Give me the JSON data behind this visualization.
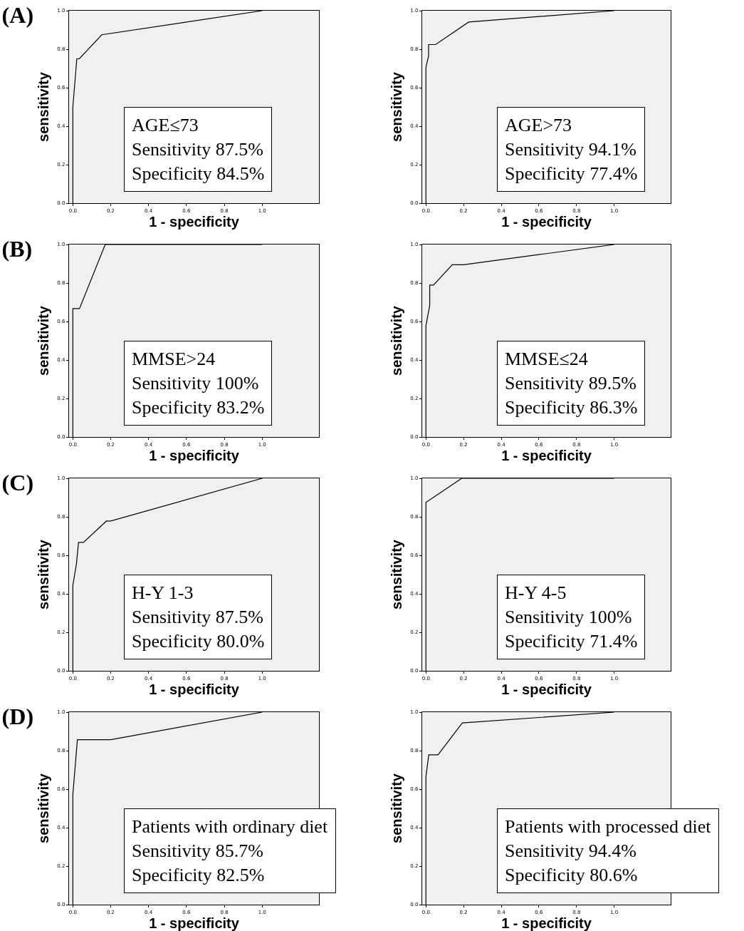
{
  "chart_data": [
    {
      "type": "line",
      "title": "(A)",
      "xlabel": "1 - specificity",
      "ylabel": "sensitivity",
      "x": [
        0,
        0,
        0.021,
        0.034,
        0.153,
        1
      ],
      "values": [
        0,
        0.5,
        0.75,
        0.75,
        0.875,
        1
      ],
      "color": "#000000",
      "xlim": [
        -0.02,
        1.3
      ],
      "ylim": [
        0,
        1
      ],
      "xticks": [
        {
          "value": 0,
          "label": "0.0"
        },
        {
          "value": 0.2,
          "label": "0.2"
        },
        {
          "value": 0.4,
          "label": "0.4"
        },
        {
          "value": 0.6,
          "label": "0.6"
        },
        {
          "value": 0.8,
          "label": "0.8"
        },
        {
          "value": 1,
          "label": "1.0"
        }
      ],
      "yticks": [
        {
          "value": 0,
          "label": "0.0"
        },
        {
          "value": 0.2,
          "label": "0.2"
        },
        {
          "value": 0.4,
          "label": "0.4"
        },
        {
          "value": 0.6,
          "label": "0.6"
        },
        {
          "value": 0.8,
          "label": "0.8"
        },
        {
          "value": 1,
          "label": "1.0"
        }
      ],
      "annotations": [
        "AGE≤73",
        "Sensitivity 87.5%",
        "Specificity 84.5%"
      ],
      "grid": false,
      "marker": "none",
      "line_style": "solid"
    },
    {
      "type": "line",
      "xlabel": "1 - specificity",
      "ylabel": "sensitivity",
      "x": [
        0,
        0,
        0.014,
        0.014,
        0.051,
        0.227,
        1
      ],
      "values": [
        0,
        0.706,
        0.765,
        0.824,
        0.824,
        0.941,
        1
      ],
      "color": "#000000",
      "xlim": [
        -0.02,
        1.3
      ],
      "ylim": [
        0,
        1
      ],
      "xticks": [
        {
          "value": 0,
          "label": "0.0"
        },
        {
          "value": 0.2,
          "label": "0.2"
        },
        {
          "value": 0.4,
          "label": "0.4"
        },
        {
          "value": 0.6,
          "label": "0.6"
        },
        {
          "value": 0.8,
          "label": "0.8"
        },
        {
          "value": 1,
          "label": "1.0"
        }
      ],
      "yticks": [
        {
          "value": 0,
          "label": "0.0"
        },
        {
          "value": 0.2,
          "label": "0.2"
        },
        {
          "value": 0.4,
          "label": "0.4"
        },
        {
          "value": 0.6,
          "label": "0.6"
        },
        {
          "value": 0.8,
          "label": "0.8"
        },
        {
          "value": 1,
          "label": "1.0"
        }
      ],
      "annotations": [
        "AGE>73",
        "Sensitivity 94.1%",
        "Specificity 77.4%"
      ],
      "grid": false,
      "marker": "none",
      "line_style": "solid"
    },
    {
      "type": "line",
      "title": "(B)",
      "xlabel": "1 - specificity",
      "ylabel": "sensitivity",
      "x": [
        0,
        0,
        0.035,
        0.171,
        1
      ],
      "values": [
        0,
        0.667,
        0.667,
        1,
        1
      ],
      "color": "#000000",
      "xlim": [
        -0.02,
        1.3
      ],
      "ylim": [
        0,
        1
      ],
      "xticks": [
        {
          "value": 0,
          "label": "0.0"
        },
        {
          "value": 0.2,
          "label": "0.2"
        },
        {
          "value": 0.4,
          "label": "0.4"
        },
        {
          "value": 0.6,
          "label": "0.6"
        },
        {
          "value": 0.8,
          "label": "0.8"
        },
        {
          "value": 1,
          "label": "1.0"
        }
      ],
      "yticks": [
        {
          "value": 0,
          "label": "0.0"
        },
        {
          "value": 0.2,
          "label": "0.2"
        },
        {
          "value": 0.4,
          "label": "0.4"
        },
        {
          "value": 0.6,
          "label": "0.6"
        },
        {
          "value": 0.8,
          "label": "0.8"
        },
        {
          "value": 1,
          "label": "1.0"
        }
      ],
      "annotations": [
        "MMSE>24",
        "Sensitivity 100%",
        "Specificity 83.2%"
      ],
      "grid": false,
      "marker": "none",
      "line_style": "solid"
    },
    {
      "type": "line",
      "xlabel": "1 - specificity",
      "ylabel": "sensitivity",
      "x": [
        0,
        0,
        0.02,
        0.02,
        0.04,
        0.14,
        0.2,
        1
      ],
      "values": [
        0,
        0.579,
        0.684,
        0.789,
        0.789,
        0.895,
        0.895,
        1
      ],
      "color": "#000000",
      "xlim": [
        -0.02,
        1.3
      ],
      "ylim": [
        0,
        1
      ],
      "xticks": [
        {
          "value": 0,
          "label": "0.0"
        },
        {
          "value": 0.2,
          "label": "0.2"
        },
        {
          "value": 0.4,
          "label": "0.4"
        },
        {
          "value": 0.6,
          "label": "0.6"
        },
        {
          "value": 0.8,
          "label": "0.8"
        },
        {
          "value": 1,
          "label": "1.0"
        }
      ],
      "yticks": [
        {
          "value": 0,
          "label": "0.0"
        },
        {
          "value": 0.2,
          "label": "0.2"
        },
        {
          "value": 0.4,
          "label": "0.4"
        },
        {
          "value": 0.6,
          "label": "0.6"
        },
        {
          "value": 0.8,
          "label": "0.8"
        },
        {
          "value": 1,
          "label": "1.0"
        }
      ],
      "annotations": [
        "MMSE≤24",
        "Sensitivity 89.5%",
        "Specificity 86.3%"
      ],
      "grid": false,
      "marker": "none",
      "line_style": "solid"
    },
    {
      "type": "line",
      "title": "(C)",
      "xlabel": "1 - specificity",
      "ylabel": "sensitivity",
      "x": [
        0,
        0,
        0.019,
        0.03,
        0.056,
        0.177,
        0.2,
        1
      ],
      "values": [
        0,
        0.444,
        0.556,
        0.667,
        0.667,
        0.778,
        0.778,
        1
      ],
      "color": "#000000",
      "xlim": [
        -0.02,
        1.3
      ],
      "ylim": [
        0,
        1
      ],
      "xticks": [
        {
          "value": 0,
          "label": "0.0"
        },
        {
          "value": 0.2,
          "label": "0.2"
        },
        {
          "value": 0.4,
          "label": "0.4"
        },
        {
          "value": 0.6,
          "label": "0.6"
        },
        {
          "value": 0.8,
          "label": "0.8"
        },
        {
          "value": 1,
          "label": "1.0"
        }
      ],
      "yticks": [
        {
          "value": 0,
          "label": "0.0"
        },
        {
          "value": 0.2,
          "label": "0.2"
        },
        {
          "value": 0.4,
          "label": "0.4"
        },
        {
          "value": 0.6,
          "label": "0.6"
        },
        {
          "value": 0.8,
          "label": "0.8"
        },
        {
          "value": 1,
          "label": "1.0"
        }
      ],
      "annotations": [
        "H-Y 1-3",
        "Sensitivity 87.5%",
        "Specificity 80.0%"
      ],
      "grid": false,
      "marker": "none",
      "line_style": "solid"
    },
    {
      "type": "line",
      "xlabel": "1 - specificity",
      "ylabel": "sensitivity",
      "x": [
        0,
        0,
        0.19,
        1
      ],
      "values": [
        0,
        0.875,
        1,
        1
      ],
      "color": "#000000",
      "xlim": [
        -0.02,
        1.3
      ],
      "ylim": [
        0,
        1
      ],
      "xticks": [
        {
          "value": 0,
          "label": "0.0"
        },
        {
          "value": 0.2,
          "label": "0.2"
        },
        {
          "value": 0.4,
          "label": "0.4"
        },
        {
          "value": 0.6,
          "label": "0.6"
        },
        {
          "value": 0.8,
          "label": "0.8"
        },
        {
          "value": 1,
          "label": "1.0"
        }
      ],
      "yticks": [
        {
          "value": 0,
          "label": "0.0"
        },
        {
          "value": 0.2,
          "label": "0.2"
        },
        {
          "value": 0.4,
          "label": "0.4"
        },
        {
          "value": 0.6,
          "label": "0.6"
        },
        {
          "value": 0.8,
          "label": "0.8"
        },
        {
          "value": 1,
          "label": "1.0"
        }
      ],
      "annotations": [
        "H-Y 4-5",
        "Sensitivity 100%",
        "Specificity 71.4%"
      ],
      "grid": false,
      "marker": "none",
      "line_style": "solid"
    },
    {
      "type": "line",
      "title": "(D)",
      "xlabel": "1 - specificity",
      "ylabel": "sensitivity",
      "x": [
        0,
        0,
        0.024,
        0.2,
        1
      ],
      "values": [
        0,
        0.571,
        0.857,
        0.857,
        1
      ],
      "color": "#000000",
      "xlim": [
        -0.02,
        1.3
      ],
      "ylim": [
        0,
        1
      ],
      "xticks": [
        {
          "value": 0,
          "label": "0.0"
        },
        {
          "value": 0.2,
          "label": "0.2"
        },
        {
          "value": 0.4,
          "label": "0.4"
        },
        {
          "value": 0.6,
          "label": "0.6"
        },
        {
          "value": 0.8,
          "label": "0.8"
        },
        {
          "value": 1,
          "label": "1.0"
        }
      ],
      "yticks": [
        {
          "value": 0,
          "label": "0.0"
        },
        {
          "value": 0.2,
          "label": "0.2"
        },
        {
          "value": 0.4,
          "label": "0.4"
        },
        {
          "value": 0.6,
          "label": "0.6"
        },
        {
          "value": 0.8,
          "label": "0.8"
        },
        {
          "value": 1,
          "label": "1.0"
        }
      ],
      "annotations": [
        "Patients with ordinary diet",
        "Sensitivity 85.7%",
        "Specificity 82.5%"
      ],
      "grid": false,
      "marker": "none",
      "line_style": "solid"
    },
    {
      "type": "line",
      "xlabel": "1 - specificity",
      "ylabel": "sensitivity",
      "x": [
        0,
        0,
        0.015,
        0.064,
        0.193,
        1
      ],
      "values": [
        0,
        0.667,
        0.778,
        0.778,
        0.944,
        1
      ],
      "color": "#000000",
      "xlim": [
        -0.02,
        1.3
      ],
      "ylim": [
        0,
        1
      ],
      "xticks": [
        {
          "value": 0,
          "label": "0.0"
        },
        {
          "value": 0.2,
          "label": "0.2"
        },
        {
          "value": 0.4,
          "label": "0.4"
        },
        {
          "value": 0.6,
          "label": "0.6"
        },
        {
          "value": 0.8,
          "label": "0.8"
        },
        {
          "value": 1,
          "label": "1.0"
        }
      ],
      "yticks": [
        {
          "value": 0,
          "label": "0.0"
        },
        {
          "value": 0.2,
          "label": "0.2"
        },
        {
          "value": 0.4,
          "label": "0.4"
        },
        {
          "value": 0.6,
          "label": "0.6"
        },
        {
          "value": 0.8,
          "label": "0.8"
        },
        {
          "value": 1,
          "label": "1.0"
        }
      ],
      "annotations": [
        "Patients with processed diet",
        "Sensitivity 94.4%",
        "Specificity 80.6%"
      ],
      "grid": false,
      "marker": "none",
      "line_style": "solid"
    }
  ]
}
